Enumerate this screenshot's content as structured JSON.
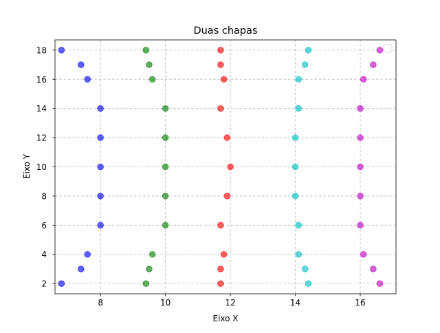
{
  "chart_data": {
    "type": "scatter",
    "title": "Duas chapas",
    "xlabel": "Eixo X",
    "ylabel": "Eixo Y",
    "xlim": [
      6.6,
      17.1
    ],
    "ylim": [
      1.3,
      18.7
    ],
    "xticks": [
      8,
      10,
      12,
      14,
      16
    ],
    "yticks": [
      2,
      4,
      6,
      8,
      10,
      12,
      14,
      16,
      18
    ],
    "grid": true,
    "legend": "top-right",
    "series": [
      {
        "color": "#0000ff",
        "points": [
          [
            6.8,
            18
          ],
          [
            7.4,
            17
          ],
          [
            7.6,
            16
          ],
          [
            8,
            14
          ],
          [
            8,
            12
          ],
          [
            8,
            10
          ],
          [
            8,
            8
          ],
          [
            8,
            6
          ],
          [
            7.6,
            4
          ],
          [
            7.4,
            3
          ],
          [
            6.8,
            2
          ]
        ]
      },
      {
        "color": "#008000",
        "points": [
          [
            9.4,
            18
          ],
          [
            9.5,
            17
          ],
          [
            9.6,
            16
          ],
          [
            10,
            14
          ],
          [
            10,
            12
          ],
          [
            10,
            10
          ],
          [
            10,
            8
          ],
          [
            10,
            6
          ],
          [
            9.6,
            4
          ],
          [
            9.5,
            3
          ],
          [
            9.4,
            2
          ]
        ]
      },
      {
        "color": "#ff0000",
        "points": [
          [
            11.7,
            18
          ],
          [
            11.7,
            17
          ],
          [
            11.8,
            16
          ],
          [
            11.7,
            14
          ],
          [
            11.9,
            12
          ],
          [
            12,
            10
          ],
          [
            11.9,
            8
          ],
          [
            11.7,
            6
          ],
          [
            11.8,
            4
          ],
          [
            11.7,
            3
          ],
          [
            11.7,
            2
          ]
        ]
      },
      {
        "color": "#00bfbf",
        "points": [
          [
            14.4,
            18
          ],
          [
            14.3,
            17
          ],
          [
            14.1,
            16
          ],
          [
            14.1,
            14
          ],
          [
            14,
            12
          ],
          [
            14,
            10
          ],
          [
            14,
            8
          ],
          [
            14.1,
            6
          ],
          [
            14.1,
            4
          ],
          [
            14.3,
            3
          ],
          [
            14.4,
            2
          ]
        ]
      },
      {
        "color": "#bf00bf",
        "points": [
          [
            16.6,
            18
          ],
          [
            16.4,
            17
          ],
          [
            16.1,
            16
          ],
          [
            16,
            14
          ],
          [
            16,
            12
          ],
          [
            16,
            10
          ],
          [
            16,
            8
          ],
          [
            16,
            6
          ],
          [
            16.1,
            4
          ],
          [
            16.4,
            3
          ],
          [
            16.6,
            2
          ]
        ]
      }
    ]
  }
}
